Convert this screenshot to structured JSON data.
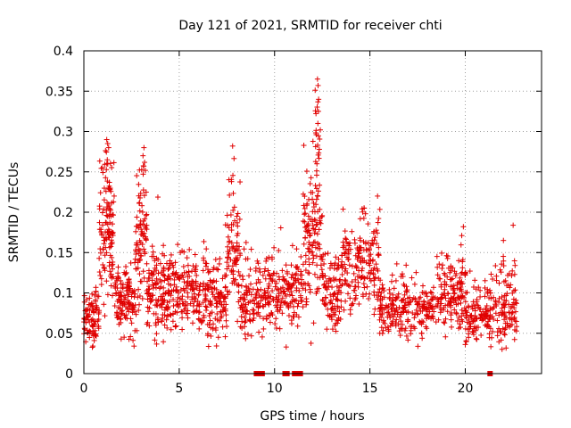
{
  "chart_data": {
    "type": "scatter",
    "title": "Day 121 of 2021, SRMTID for receiver chti",
    "xlabel": "GPS time / hours",
    "ylabel": "SRMTID / TECUs",
    "xlim": [
      0,
      24
    ],
    "ylim": [
      0,
      0.4
    ],
    "xticks": [
      0,
      5,
      10,
      15,
      20
    ],
    "yticks": [
      0,
      0.05,
      0.1,
      0.15,
      0.2,
      0.25,
      0.3,
      0.35,
      0.4
    ],
    "xtick_labels": [
      "0",
      "5",
      "10",
      "15",
      "20"
    ],
    "ytick_labels": [
      "0",
      "0.05",
      "0.1",
      "0.15",
      "0.2",
      "0.25",
      "0.3",
      "0.35",
      "0.4"
    ],
    "grid": true,
    "marker": "+",
    "color": "#e00000",
    "series": [
      {
        "name": "SRMTID",
        "segments": [
          {
            "x_start": 0.0,
            "x_end": 0.8,
            "mean": 0.07,
            "spread": 0.03,
            "count": 90
          },
          {
            "x_start": 0.8,
            "x_end": 1.6,
            "mean": 0.17,
            "spread": 0.07,
            "count": 110
          },
          {
            "x_start": 1.6,
            "x_end": 2.7,
            "mean": 0.09,
            "spread": 0.04,
            "count": 120
          },
          {
            "x_start": 2.7,
            "x_end": 3.3,
            "mean": 0.16,
            "spread": 0.07,
            "count": 80
          },
          {
            "x_start": 3.3,
            "x_end": 4.3,
            "mean": 0.1,
            "spread": 0.05,
            "count": 110
          },
          {
            "x_start": 4.3,
            "x_end": 6.5,
            "mean": 0.1,
            "spread": 0.04,
            "count": 210
          },
          {
            "x_start": 6.5,
            "x_end": 7.5,
            "mean": 0.09,
            "spread": 0.04,
            "count": 100
          },
          {
            "x_start": 7.5,
            "x_end": 8.2,
            "mean": 0.15,
            "spread": 0.06,
            "count": 80
          },
          {
            "x_start": 8.2,
            "x_end": 9.2,
            "mean": 0.09,
            "spread": 0.04,
            "count": 90
          },
          {
            "x_start": 9.2,
            "x_end": 11.5,
            "mean": 0.1,
            "spread": 0.04,
            "count": 190
          },
          {
            "x_start": 11.5,
            "x_end": 12.5,
            "mean": 0.16,
            "spread": 0.07,
            "count": 120
          },
          {
            "x_start": 12.5,
            "x_end": 13.5,
            "mean": 0.1,
            "spread": 0.04,
            "count": 100
          },
          {
            "x_start": 13.5,
            "x_end": 15.5,
            "mean": 0.13,
            "spread": 0.05,
            "count": 170
          },
          {
            "x_start": 15.5,
            "x_end": 18.5,
            "mean": 0.08,
            "spread": 0.03,
            "count": 230
          },
          {
            "x_start": 18.5,
            "x_end": 20.0,
            "mean": 0.1,
            "spread": 0.04,
            "count": 140
          },
          {
            "x_start": 20.0,
            "x_end": 21.3,
            "mean": 0.07,
            "spread": 0.03,
            "count": 110
          },
          {
            "x_start": 21.3,
            "x_end": 22.7,
            "mean": 0.08,
            "spread": 0.04,
            "count": 120
          }
        ],
        "peaks": [
          {
            "x": 1.2,
            "y": 0.29
          },
          {
            "x": 1.25,
            "y": 0.285
          },
          {
            "x": 1.3,
            "y": 0.28
          },
          {
            "x": 3.15,
            "y": 0.28
          },
          {
            "x": 3.1,
            "y": 0.27
          },
          {
            "x": 7.8,
            "y": 0.282
          },
          {
            "x": 12.25,
            "y": 0.365
          },
          {
            "x": 12.28,
            "y": 0.357
          },
          {
            "x": 12.3,
            "y": 0.325
          },
          {
            "x": 12.27,
            "y": 0.31
          },
          {
            "x": 12.26,
            "y": 0.283
          },
          {
            "x": 12.22,
            "y": 0.26
          },
          {
            "x": 15.4,
            "y": 0.22
          },
          {
            "x": 14.7,
            "y": 0.205
          },
          {
            "x": 19.9,
            "y": 0.182
          },
          {
            "x": 22.0,
            "y": 0.165
          }
        ],
        "zero_values_x": [
          9.05,
          9.15,
          9.35,
          10.55,
          10.65,
          11.05,
          11.15,
          11.25,
          11.35,
          21.3
        ]
      }
    ]
  }
}
